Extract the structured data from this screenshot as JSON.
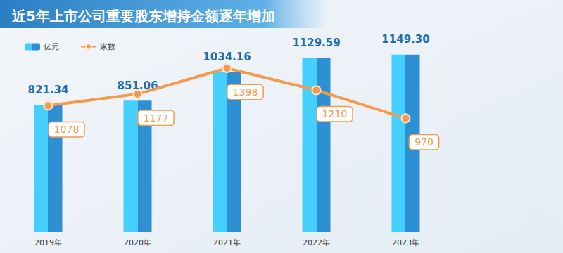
{
  "chart_data": {
    "type": "bar",
    "title": "近5年上市公司重要股东增持金额逐年增加",
    "categories": [
      "2019年",
      "2020年",
      "2021年",
      "2022年",
      "2023年"
    ],
    "series": [
      {
        "name": "亿元",
        "type": "bar",
        "color": "#2f8fd3",
        "values": [
          821.34,
          851.06,
          1034.16,
          1129.59,
          1149.3
        ],
        "value_labels": [
          "821.34",
          "851.06",
          "1034.16",
          "1129.59",
          "1149.30"
        ]
      },
      {
        "name": "家数",
        "type": "line",
        "color": "#f39a4c",
        "marker": "circle",
        "axis": "y2",
        "values": [
          1078,
          1177,
          1398,
          1210,
          970
        ]
      }
    ],
    "ylim": [
      0,
      1230
    ],
    "yticks": [
      0,
      1230
    ],
    "y2lim": [
      0,
      1620
    ],
    "y2ticks": [
      0,
      1620
    ],
    "grid": false,
    "legend": "top-left",
    "data_labels": true,
    "tick_labels": false
  }
}
